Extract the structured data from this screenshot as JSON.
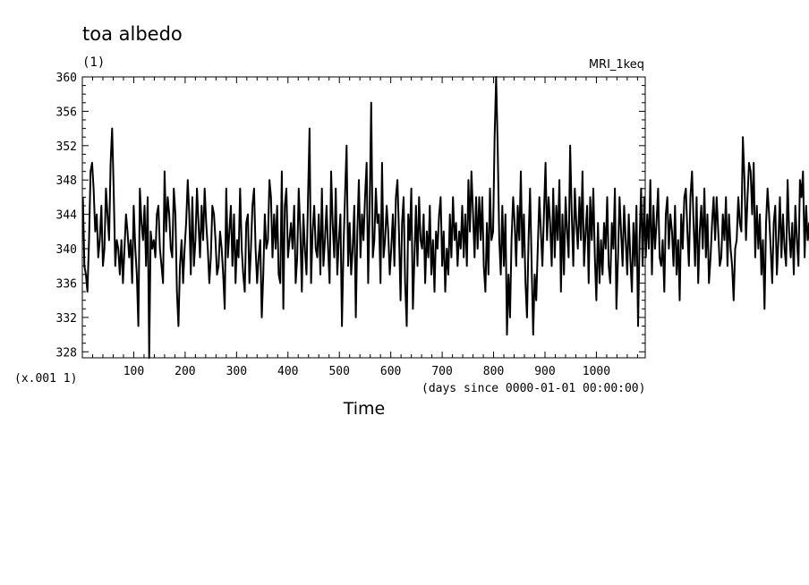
{
  "chart_data": {
    "type": "line",
    "title": "toa albedo",
    "units": "(1)",
    "dataset": "MRI_1keq",
    "scale_note": "(x.001 1)",
    "xlabel": "Time",
    "xunits": "(days since 0000-01-01 00:00:00)",
    "xlim": [
      0,
      1095
    ],
    "ylim": [
      327.3,
      360
    ],
    "x_ticks": [
      100,
      200,
      300,
      400,
      500,
      600,
      700,
      800,
      900,
      1000
    ],
    "x_tick_labels": [
      "100",
      "200",
      "300",
      "400",
      "500",
      "600",
      "700",
      "800",
      "900",
      "1000"
    ],
    "y_ticks": [
      328,
      332,
      336,
      340,
      344,
      348,
      352,
      356,
      360
    ],
    "y_tick_labels": [
      "328",
      "332",
      "336",
      "340",
      "344",
      "348",
      "352",
      "356",
      "360"
    ],
    "grid": false,
    "line_color": "#000000",
    "x_start": 1,
    "x_step": 3,
    "values": [
      346,
      338,
      337,
      335,
      341,
      349,
      350,
      347,
      342,
      344,
      339,
      341,
      345,
      338,
      340,
      347,
      344,
      341,
      350,
      354,
      347,
      338,
      341,
      340,
      337,
      341,
      336,
      340,
      344,
      342,
      339,
      341,
      336,
      345,
      340,
      337,
      331,
      347,
      343,
      341,
      345,
      338,
      346,
      327,
      342,
      340,
      341,
      339,
      344,
      345,
      340,
      338,
      336,
      349,
      342,
      346,
      344,
      340,
      339,
      347,
      344,
      335,
      331,
      338,
      341,
      336,
      340,
      343,
      348,
      344,
      337,
      346,
      338,
      341,
      347,
      343,
      339,
      345,
      341,
      347,
      343,
      340,
      336,
      339,
      345,
      344,
      341,
      337,
      338,
      342,
      340,
      337,
      333,
      347,
      339,
      342,
      345,
      338,
      344,
      336,
      341,
      339,
      347,
      340,
      337,
      335,
      343,
      344,
      336,
      340,
      345,
      347,
      340,
      336,
      339,
      341,
      332,
      337,
      344,
      340,
      341,
      348,
      346,
      339,
      344,
      340,
      345,
      337,
      336,
      349,
      333,
      345,
      347,
      339,
      341,
      343,
      340,
      345,
      336,
      339,
      347,
      342,
      335,
      344,
      340,
      337,
      346,
      354,
      336,
      342,
      345,
      340,
      339,
      344,
      337,
      347,
      338,
      341,
      345,
      340,
      336,
      349,
      343,
      339,
      347,
      337,
      341,
      344,
      331,
      340,
      346,
      352,
      338,
      343,
      337,
      340,
      345,
      332,
      342,
      348,
      339,
      344,
      341,
      346,
      350,
      336,
      345,
      357,
      339,
      341,
      347,
      343,
      344,
      336,
      350,
      339,
      341,
      345,
      342,
      337,
      340,
      344,
      338,
      346,
      348,
      342,
      334,
      343,
      346,
      336,
      331,
      344,
      341,
      347,
      333,
      339,
      345,
      338,
      346,
      341,
      340,
      344,
      336,
      342,
      339,
      345,
      337,
      341,
      335,
      342,
      340,
      344,
      346,
      338,
      342,
      335,
      340,
      337,
      344,
      339,
      346,
      341,
      343,
      338,
      342,
      340,
      345,
      339,
      344,
      338,
      348,
      342,
      349,
      344,
      339,
      346,
      340,
      346,
      341,
      346,
      338,
      335,
      343,
      337,
      347,
      341,
      342,
      353,
      360,
      352,
      341,
      337,
      345,
      338,
      344,
      330,
      337,
      332,
      341,
      346,
      343,
      338,
      345,
      341,
      349,
      339,
      344,
      336,
      332,
      341,
      347,
      338,
      330,
      337,
      334,
      340,
      346,
      342,
      338,
      344,
      350,
      341,
      346,
      343,
      338,
      347,
      339,
      345,
      341,
      348,
      335,
      344,
      337,
      346,
      342,
      339,
      352,
      344,
      338,
      347,
      343,
      340,
      346,
      341,
      349,
      338,
      342,
      345,
      336,
      346,
      341,
      347,
      339,
      334,
      343,
      336,
      341,
      337,
      343,
      340,
      346,
      338,
      336,
      343,
      340,
      347,
      333,
      339,
      346,
      342,
      338,
      345,
      341,
      337,
      344,
      339,
      335,
      343,
      338,
      345,
      331,
      341,
      347,
      338,
      346,
      339,
      344,
      340,
      348,
      337,
      345,
      340,
      343,
      347,
      339,
      338,
      341,
      335,
      344,
      346,
      340,
      344,
      342,
      338,
      345,
      337,
      341,
      334,
      344,
      340,
      346,
      347,
      342,
      338,
      346,
      349,
      343,
      338,
      346,
      336,
      342,
      345,
      340,
      347,
      339,
      344,
      336,
      339,
      343,
      346,
      341,
      346,
      342,
      338,
      339,
      344,
      341,
      346,
      338,
      344,
      340,
      338,
      334,
      340,
      341,
      346,
      343,
      342,
      353,
      348,
      341,
      346,
      350,
      349,
      344,
      350,
      339,
      345,
      340,
      344,
      337,
      341,
      333,
      343,
      347,
      344,
      340,
      336,
      343,
      345,
      337,
      341,
      346,
      339,
      344,
      340,
      338,
      348,
      342,
      339,
      343,
      337,
      345,
      341,
      338,
      348,
      346,
      349,
      339,
      345,
      341,
      343,
      337,
      343,
      345,
      349,
      359
    ]
  }
}
